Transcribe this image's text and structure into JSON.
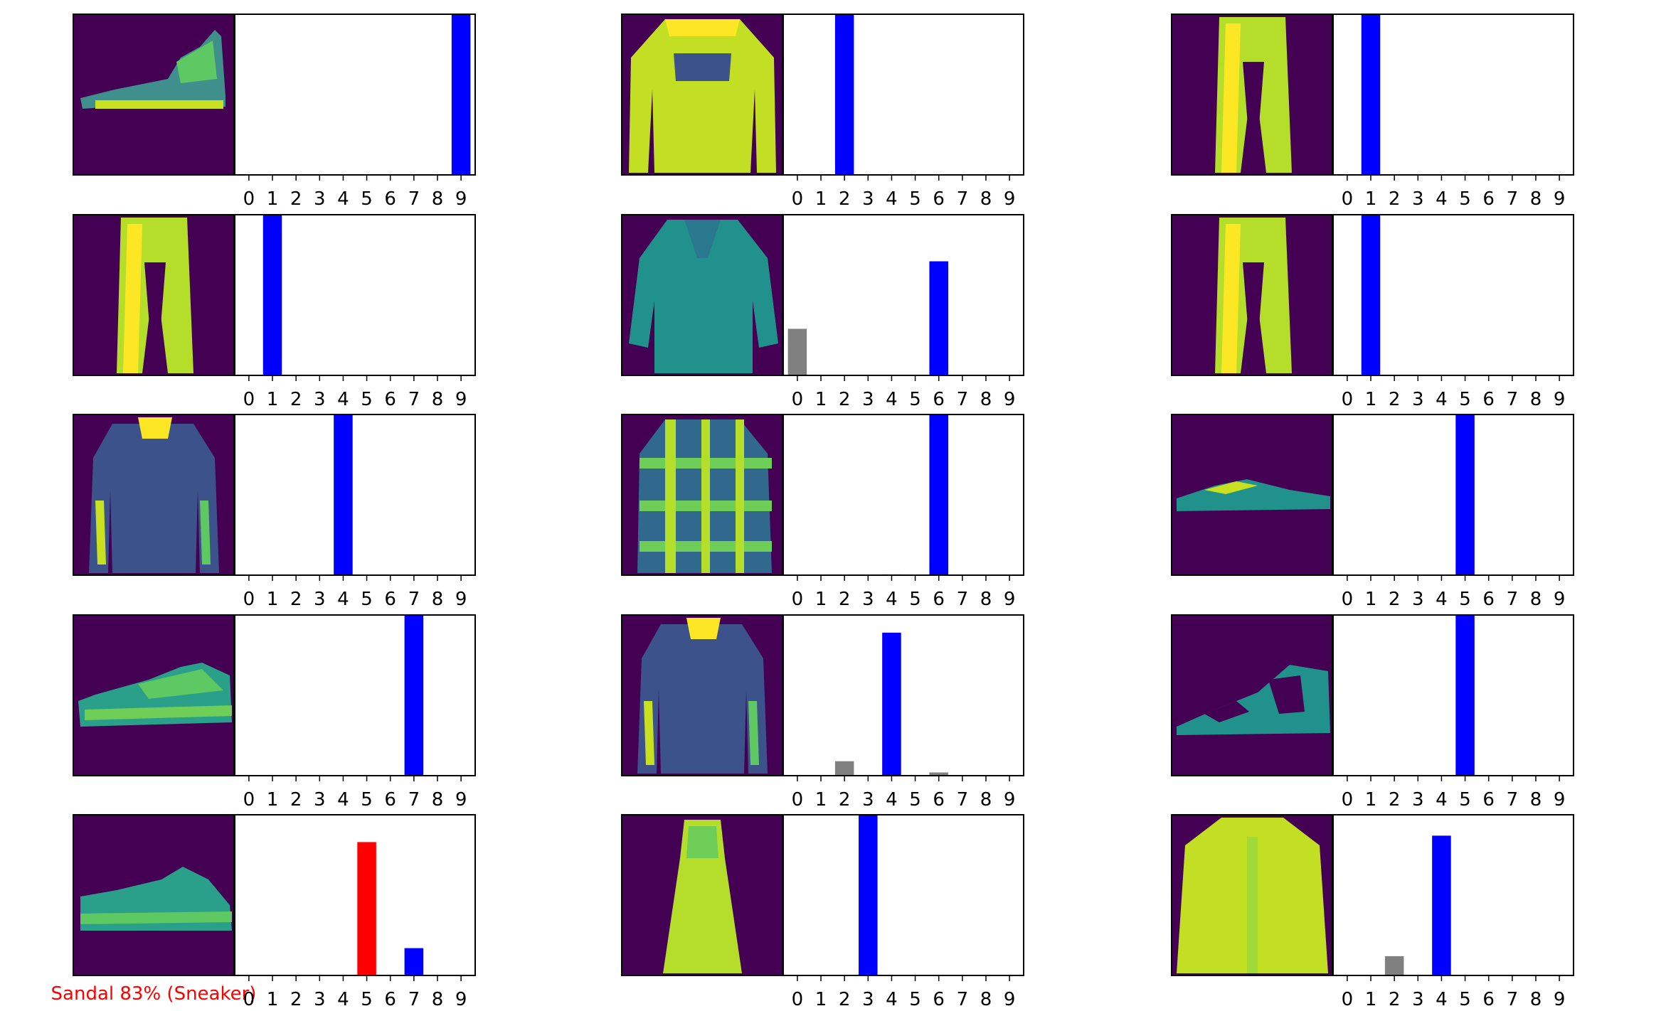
{
  "colors": {
    "predicted_correct": "#0000ff",
    "predicted_wrong": "#ff0000",
    "other": "#808080",
    "caption_wrong": "#ff0000",
    "caption_correct": "#0000ff",
    "image_background": "#440154"
  },
  "chart_data": [
    {
      "type": "bar",
      "categories": [
        "0",
        "1",
        "2",
        "3",
        "4",
        "5",
        "6",
        "7",
        "8",
        "9"
      ],
      "values": [
        0,
        0,
        0,
        0,
        0,
        0,
        0,
        0,
        0,
        1.0
      ],
      "ylim": [
        0,
        1
      ],
      "predicted": 9,
      "true": 9,
      "caption": "",
      "image_icon": "ankle-boot-icon"
    },
    {
      "type": "bar",
      "categories": [
        "0",
        "1",
        "2",
        "3",
        "4",
        "5",
        "6",
        "7",
        "8",
        "9"
      ],
      "values": [
        0,
        0,
        1.0,
        0,
        0,
        0,
        0,
        0,
        0,
        0
      ],
      "ylim": [
        0,
        1
      ],
      "predicted": 2,
      "true": 2,
      "caption": "",
      "image_icon": "pullover-icon"
    },
    {
      "type": "bar",
      "categories": [
        "0",
        "1",
        "2",
        "3",
        "4",
        "5",
        "6",
        "7",
        "8",
        "9"
      ],
      "values": [
        0,
        1.0,
        0,
        0,
        0,
        0,
        0,
        0,
        0,
        0
      ],
      "ylim": [
        0,
        1
      ],
      "predicted": 1,
      "true": 1,
      "caption": "",
      "image_icon": "trouser-icon"
    },
    {
      "type": "bar",
      "categories": [
        "0",
        "1",
        "2",
        "3",
        "4",
        "5",
        "6",
        "7",
        "8",
        "9"
      ],
      "values": [
        0,
        1.0,
        0,
        0,
        0,
        0,
        0,
        0,
        0,
        0
      ],
      "ylim": [
        0,
        1
      ],
      "predicted": 1,
      "true": 1,
      "caption": "",
      "image_icon": "trouser-icon"
    },
    {
      "type": "bar",
      "categories": [
        "0",
        "1",
        "2",
        "3",
        "4",
        "5",
        "6",
        "7",
        "8",
        "9"
      ],
      "values": [
        0.29,
        0,
        0.004,
        0,
        0,
        0,
        0.71,
        0,
        0,
        0
      ],
      "ylim": [
        0,
        1
      ],
      "predicted": 6,
      "true": 6,
      "caption": "",
      "image_icon": "shirt-icon"
    },
    {
      "type": "bar",
      "categories": [
        "0",
        "1",
        "2",
        "3",
        "4",
        "5",
        "6",
        "7",
        "8",
        "9"
      ],
      "values": [
        0,
        1.0,
        0,
        0,
        0,
        0,
        0,
        0,
        0,
        0
      ],
      "ylim": [
        0,
        1
      ],
      "predicted": 1,
      "true": 1,
      "caption": "",
      "image_icon": "trouser-icon"
    },
    {
      "type": "bar",
      "categories": [
        "0",
        "1",
        "2",
        "3",
        "4",
        "5",
        "6",
        "7",
        "8",
        "9"
      ],
      "values": [
        0,
        0,
        0,
        0,
        1.0,
        0,
        0,
        0,
        0,
        0
      ],
      "ylim": [
        0,
        1
      ],
      "predicted": 4,
      "true": 4,
      "caption": "",
      "image_icon": "coat-icon"
    },
    {
      "type": "bar",
      "categories": [
        "0",
        "1",
        "2",
        "3",
        "4",
        "5",
        "6",
        "7",
        "8",
        "9"
      ],
      "values": [
        0,
        0,
        0,
        0,
        0.005,
        0,
        1.0,
        0,
        0,
        0
      ],
      "ylim": [
        0,
        1
      ],
      "predicted": 6,
      "true": 6,
      "caption": "",
      "image_icon": "shirt-icon"
    },
    {
      "type": "bar",
      "categories": [
        "0",
        "1",
        "2",
        "3",
        "4",
        "5",
        "6",
        "7",
        "8",
        "9"
      ],
      "values": [
        0,
        0,
        0,
        0,
        0,
        1.0,
        0,
        0,
        0,
        0
      ],
      "ylim": [
        0,
        1
      ],
      "predicted": 5,
      "true": 5,
      "caption": "",
      "image_icon": "sandal-icon"
    },
    {
      "type": "bar",
      "categories": [
        "0",
        "1",
        "2",
        "3",
        "4",
        "5",
        "6",
        "7",
        "8",
        "9"
      ],
      "values": [
        0,
        0,
        0,
        0,
        0,
        0,
        0,
        1.0,
        0,
        0
      ],
      "ylim": [
        0,
        1
      ],
      "predicted": 7,
      "true": 7,
      "caption": "",
      "image_icon": "sneaker-icon"
    },
    {
      "type": "bar",
      "categories": [
        "0",
        "1",
        "2",
        "3",
        "4",
        "5",
        "6",
        "7",
        "8",
        "9"
      ],
      "values": [
        0,
        0,
        0.09,
        0,
        0.89,
        0,
        0.02,
        0,
        0,
        0
      ],
      "ylim": [
        0,
        1
      ],
      "predicted": 4,
      "true": 4,
      "caption": "",
      "image_icon": "coat-icon"
    },
    {
      "type": "bar",
      "categories": [
        "0",
        "1",
        "2",
        "3",
        "4",
        "5",
        "6",
        "7",
        "8",
        "9"
      ],
      "values": [
        0,
        0,
        0,
        0,
        0,
        1.0,
        0,
        0,
        0,
        0
      ],
      "ylim": [
        0,
        1
      ],
      "predicted": 5,
      "true": 5,
      "caption": "",
      "image_icon": "sandal-icon"
    },
    {
      "type": "bar",
      "categories": [
        "0",
        "1",
        "2",
        "3",
        "4",
        "5",
        "6",
        "7",
        "8",
        "9"
      ],
      "values": [
        0,
        0,
        0,
        0,
        0,
        0.83,
        0,
        0.17,
        0.004,
        0
      ],
      "ylim": [
        0,
        1
      ],
      "predicted": 5,
      "true": 7,
      "caption": "Sandal 83% (Sneaker)",
      "image_icon": "sneaker-icon"
    },
    {
      "type": "bar",
      "categories": [
        "0",
        "1",
        "2",
        "3",
        "4",
        "5",
        "6",
        "7",
        "8",
        "9"
      ],
      "values": [
        0,
        0,
        0,
        1.0,
        0,
        0,
        0,
        0,
        0,
        0
      ],
      "ylim": [
        0,
        1
      ],
      "predicted": 3,
      "true": 3,
      "caption": "",
      "image_icon": "dress-icon"
    },
    {
      "type": "bar",
      "categories": [
        "0",
        "1",
        "2",
        "3",
        "4",
        "5",
        "6",
        "7",
        "8",
        "9"
      ],
      "values": [
        0,
        0,
        0.12,
        0,
        0.87,
        0,
        0.003,
        0,
        0,
        0
      ],
      "ylim": [
        0,
        1
      ],
      "predicted": 4,
      "true": 4,
      "caption": "",
      "image_icon": "coat-icon"
    }
  ]
}
